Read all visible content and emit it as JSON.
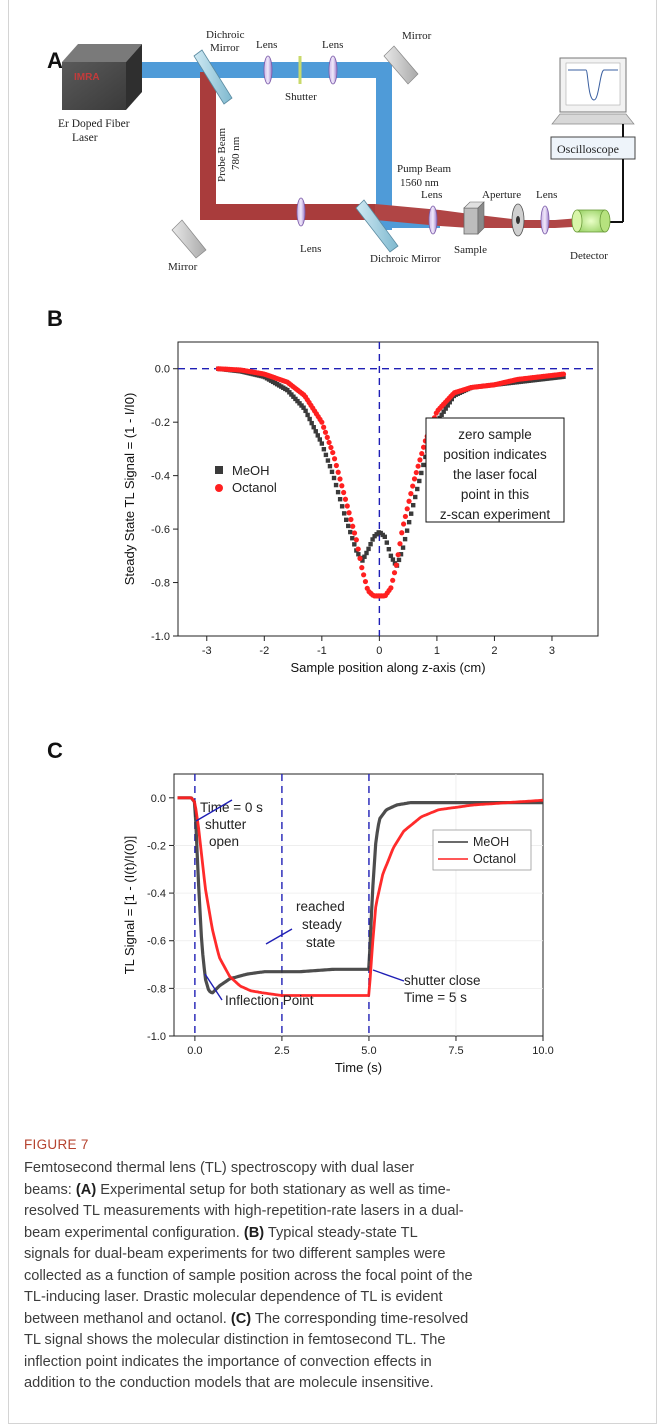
{
  "panel_a": {
    "letter": "A",
    "laser_brand": "IMRA",
    "laser_label": [
      "Er Doped Fiber",
      "Laser"
    ],
    "dichroic_top": [
      "Dichroic",
      "Mirror"
    ],
    "lens1": "Lens",
    "lens2": "Lens",
    "shutter": "Shutter",
    "mirror_top": "Mirror",
    "probe_beam": [
      "Probe Beam",
      "780 nm"
    ],
    "pump_beam": [
      "Pump Beam",
      "1560 nm"
    ],
    "oscilloscope": "Oscilloscope",
    "lens3": "Lens",
    "lens4": "Lens",
    "aperture": "Aperture",
    "lens5": "Lens",
    "sample": "Sample",
    "detector": "Detector",
    "mirror_bottom": "Mirror",
    "dichroic_bottom": "Dichroic Mirror"
  },
  "panel_b": {
    "letter": "B",
    "annotation": [
      "zero sample",
      "position indicates",
      "the laser focal",
      "point in this",
      "z-scan experiment"
    ]
  },
  "panel_c": {
    "letter": "C",
    "annotations": {
      "time0": "Time = 0 s",
      "shutter_open": [
        "shutter",
        "open"
      ],
      "steady": [
        "reached",
        "steady",
        "state"
      ],
      "inflection": "Inflection Point",
      "shutter_close": "shutter close",
      "time5": "Time = 5 s"
    }
  },
  "chart_data": [
    {
      "type": "scatter",
      "panel": "B",
      "xlabel": "Sample position along z-axis (cm)",
      "ylabel": "Steady State TL Signal = (1 - I/I0)",
      "xlim": [
        -3.5,
        3.8
      ],
      "ylim": [
        -1.0,
        0.1
      ],
      "xticks": [
        "-3",
        "-2",
        "-1",
        "0",
        "1",
        "2",
        "3"
      ],
      "yticks": [
        "0.0",
        "-0.2",
        "-0.4",
        "-0.6",
        "-0.8",
        "-1.0"
      ],
      "legend": "left",
      "colors": {
        "MeOH": "#3a3a3a",
        "Octanol": "#ff2020",
        "reference": "#1f1fb5"
      },
      "series": [
        {
          "name": "MeOH",
          "x": [
            -2.8,
            -2.4,
            -2.0,
            -1.6,
            -1.3,
            -1.0,
            -0.8,
            -0.6,
            -0.4,
            -0.3,
            -0.2,
            -0.1,
            0.0,
            0.1,
            0.2,
            0.3,
            0.4,
            0.6,
            0.8,
            1.0,
            1.3,
            1.6,
            2.0,
            2.4,
            2.8,
            3.2
          ],
          "y": [
            0.0,
            -0.01,
            -0.03,
            -0.08,
            -0.15,
            -0.28,
            -0.4,
            -0.55,
            -0.68,
            -0.72,
            -0.68,
            -0.63,
            -0.61,
            -0.63,
            -0.7,
            -0.74,
            -0.68,
            -0.5,
            -0.33,
            -0.2,
            -0.1,
            -0.07,
            -0.06,
            -0.05,
            -0.04,
            -0.03
          ]
        },
        {
          "name": "Octanol",
          "x": [
            -2.8,
            -2.4,
            -2.0,
            -1.6,
            -1.3,
            -1.0,
            -0.8,
            -0.6,
            -0.4,
            -0.3,
            -0.2,
            -0.1,
            0.0,
            0.1,
            0.2,
            0.3,
            0.4,
            0.6,
            0.8,
            1.0,
            1.3,
            1.6,
            2.0,
            2.4,
            2.8,
            3.2
          ],
          "y": [
            0.0,
            -0.005,
            -0.02,
            -0.05,
            -0.1,
            -0.2,
            -0.32,
            -0.48,
            -0.64,
            -0.75,
            -0.83,
            -0.85,
            -0.85,
            -0.85,
            -0.82,
            -0.73,
            -0.6,
            -0.42,
            -0.27,
            -0.16,
            -0.09,
            -0.07,
            -0.06,
            -0.04,
            -0.03,
            -0.02
          ]
        }
      ]
    },
    {
      "type": "line",
      "panel": "C",
      "xlabel": "Time (s)",
      "ylabel": "TL Signal = [1 - (I(t)/I(0)]",
      "xlim": [
        -0.6,
        10.0
      ],
      "ylim": [
        -1.0,
        0.1
      ],
      "xticks": [
        "0.0",
        "2.5",
        "5.0",
        "7.5",
        "10.0"
      ],
      "yticks": [
        "0.0",
        "-0.2",
        "-0.4",
        "-0.6",
        "-0.8",
        "-1.0"
      ],
      "legend": "right",
      "colors": {
        "MeOH": "#3a3a3a",
        "Octanol": "#ff2020",
        "markers": "#1f1fb5"
      },
      "series": [
        {
          "name": "MeOH",
          "x": [
            -0.5,
            -0.1,
            0.0,
            0.1,
            0.2,
            0.3,
            0.4,
            0.5,
            0.7,
            1.0,
            1.5,
            2.0,
            3.0,
            4.0,
            4.99,
            5.0,
            5.1,
            5.2,
            5.3,
            5.5,
            5.8,
            6.2,
            7.0,
            8.0,
            9.0,
            10.0
          ],
          "y": [
            0.0,
            0.0,
            -0.02,
            -0.35,
            -0.62,
            -0.76,
            -0.81,
            -0.82,
            -0.79,
            -0.76,
            -0.74,
            -0.73,
            -0.73,
            -0.72,
            -0.72,
            -0.72,
            -0.4,
            -0.18,
            -0.09,
            -0.05,
            -0.03,
            -0.02,
            -0.02,
            -0.02,
            -0.02,
            -0.02
          ]
        },
        {
          "name": "Octanol",
          "x": [
            -0.5,
            -0.1,
            0.0,
            0.1,
            0.2,
            0.3,
            0.5,
            0.7,
            1.0,
            1.3,
            1.6,
            2.0,
            2.5,
            3.0,
            4.0,
            4.99,
            5.0,
            5.1,
            5.2,
            5.4,
            5.7,
            6.0,
            6.5,
            7.0,
            8.0,
            9.0,
            10.0
          ],
          "y": [
            0.0,
            0.0,
            -0.02,
            -0.12,
            -0.25,
            -0.38,
            -0.55,
            -0.67,
            -0.75,
            -0.79,
            -0.81,
            -0.82,
            -0.83,
            -0.83,
            -0.83,
            -0.83,
            -0.83,
            -0.62,
            -0.45,
            -0.32,
            -0.21,
            -0.14,
            -0.08,
            -0.05,
            -0.03,
            -0.02,
            -0.01
          ]
        }
      ]
    }
  ],
  "caption": {
    "label": "FIGURE 7",
    "lines": [
      "Femtosecond thermal lens (TL) spectroscopy with dual laser",
      "beams: (A) Experimental setup for both stationary as well as time-",
      "resolved TL measurements with high-repetition-rate lasers in a dual-",
      "beam experimental configuration. (B) Typical steady-state TL",
      "signals for dual-beam experiments for two different samples were",
      "collected as a function of sample position across the focal point of the",
      "TL-inducing laser. Drastic molecular dependence of TL is evident",
      "between methanol and octanol. (C) The corresponding time-resolved",
      "TL signal shows the molecular distinction in femtosecond TL. The",
      "inflection point indicates the importance of convection effects in",
      "addition to the conduction models that are molecule insensitive."
    ]
  }
}
